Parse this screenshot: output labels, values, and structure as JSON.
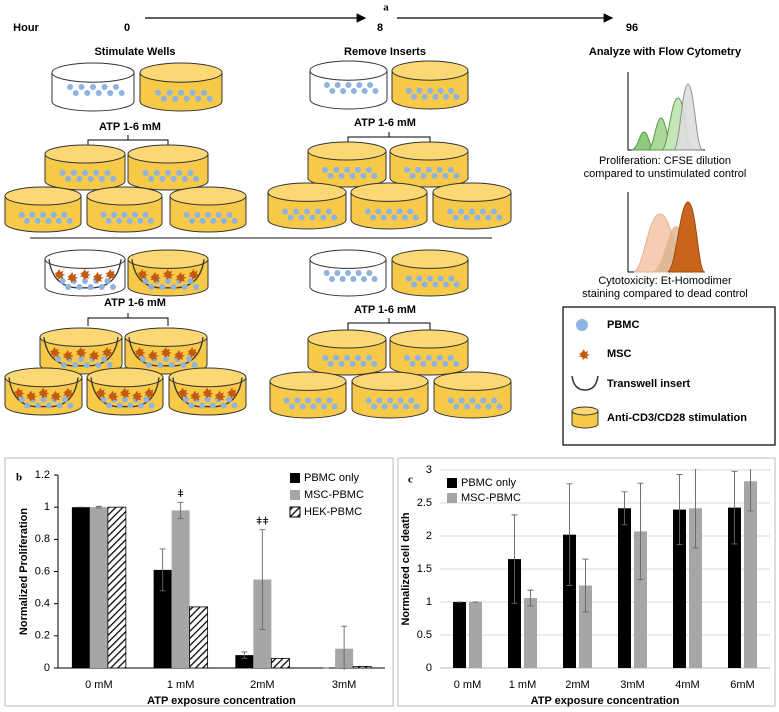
{
  "diagram": {
    "panel_label": "a",
    "hour_label": "Hour",
    "hours": [
      "0",
      "8",
      "96"
    ],
    "steps": [
      "Stimulate Wells",
      "Remove Inserts",
      "Analyze with Flow Cytometry"
    ],
    "atp_labels": [
      "ATP 1-6 mM",
      "ATP 1-6 mM",
      "ATP 1-6 mM",
      "ATP 1-6 mM"
    ],
    "proliferation_caption": [
      "Proliferation: CFSE dilution",
      "compared to unstimulated control"
    ],
    "cytotoxicity_caption": [
      "Cytotoxicity: Et-Homodimer",
      "staining compared to dead control"
    ],
    "legend": [
      "PBMC",
      "MSC",
      "Transwell insert",
      "Anti-CD3/CD28 stimulation"
    ]
  },
  "chart_data": [
    {
      "type": "bar",
      "panel_label": "b",
      "categories": [
        "0 mM",
        "1 mM",
        "2mM",
        "3mM"
      ],
      "series": [
        {
          "name": "PBMC only",
          "color": "#000000",
          "values": [
            1,
            0.61,
            0.08,
            0
          ],
          "errors": [
            0,
            0.13,
            0.02,
            0
          ]
        },
        {
          "name": "MSC-PBMC",
          "color": "#a6a6a6",
          "values": [
            1,
            0.98,
            0.55,
            0.12
          ],
          "errors": [
            0.005,
            0.05,
            0.31,
            0.14
          ]
        },
        {
          "name": "HEK-PBMC",
          "color": "#000000",
          "pattern": "hatch",
          "values": [
            1,
            0.38,
            0.06,
            0.01
          ]
        }
      ],
      "annotations": [
        {
          "text": "ǂ",
          "series": "MSC-PBMC",
          "category": "1 mM"
        },
        {
          "text": "ǂǂ",
          "series": "MSC-PBMC",
          "category": "2mM"
        }
      ],
      "ylabel": "Normalized Proliferation",
      "xlabel": "ATP exposure concentration",
      "ylim": [
        0,
        1.2
      ],
      "yticks": [
        0,
        0.2,
        0.4,
        0.6,
        0.8,
        1,
        1.2
      ],
      "grid": false
    },
    {
      "type": "bar",
      "panel_label": "c",
      "categories": [
        "0 mM",
        "1 mM",
        "2mM",
        "3mM",
        "4mM",
        "6mM"
      ],
      "series": [
        {
          "name": "PBMC only",
          "color": "#000000",
          "values": [
            1,
            1.65,
            2.02,
            2.42,
            2.4,
            2.43
          ],
          "errors": [
            0,
            0.67,
            0.77,
            0.25,
            0.53,
            0.55
          ]
        },
        {
          "name": "MSC-PBMC",
          "color": "#a6a6a6",
          "values": [
            1,
            1.06,
            1.25,
            2.07,
            2.42,
            2.83
          ],
          "errors": [
            0,
            0.12,
            0.4,
            0.73,
            0.6,
            0.45
          ]
        }
      ],
      "ylabel": "Normalized cell death",
      "xlabel": "ATP exposure concentration",
      "ylim": [
        0,
        3
      ],
      "yticks": [
        0,
        0.5,
        1,
        1.5,
        2,
        2.5,
        3
      ],
      "grid": true
    }
  ]
}
